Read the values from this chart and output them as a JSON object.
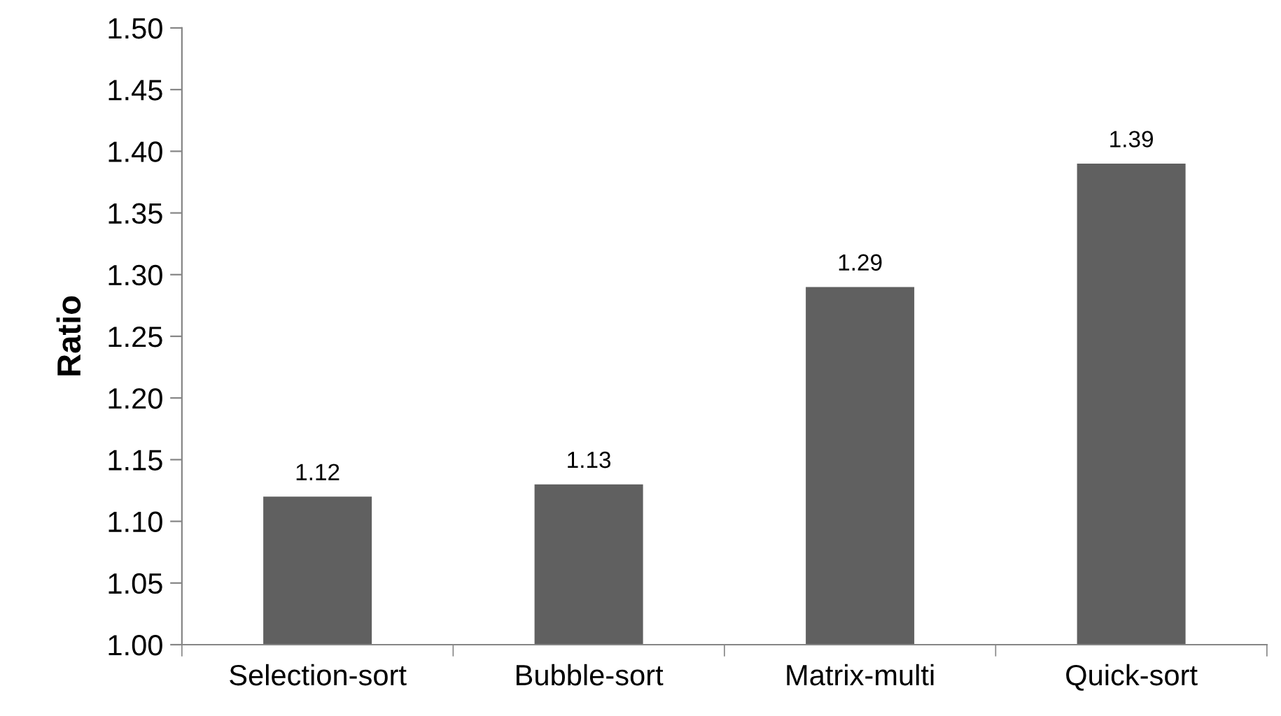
{
  "chart_data": {
    "type": "bar",
    "ylabel": "Ratio",
    "categories": [
      "Selection-sort",
      "Bubble-sort",
      "Matrix-multi",
      "Quick-sort"
    ],
    "values": [
      1.12,
      1.13,
      1.29,
      1.39
    ],
    "color": "#606060",
    "ylim": [
      1.0,
      1.5
    ],
    "yticks": [
      {
        "value": 1.0,
        "label": "1.00"
      },
      {
        "value": 1.05,
        "label": "1.05"
      },
      {
        "value": 1.1,
        "label": "1.10"
      },
      {
        "value": 1.15,
        "label": "1.15"
      },
      {
        "value": 1.2,
        "label": "1.20"
      },
      {
        "value": 1.25,
        "label": "1.25"
      },
      {
        "value": 1.3,
        "label": "1.30"
      },
      {
        "value": 1.35,
        "label": "1.35"
      },
      {
        "value": 1.4,
        "label": "1.40"
      },
      {
        "value": 1.45,
        "label": "1.45"
      },
      {
        "value": 1.5,
        "label": "1.50"
      }
    ],
    "data_labels": true,
    "grid": false,
    "legend": false
  }
}
